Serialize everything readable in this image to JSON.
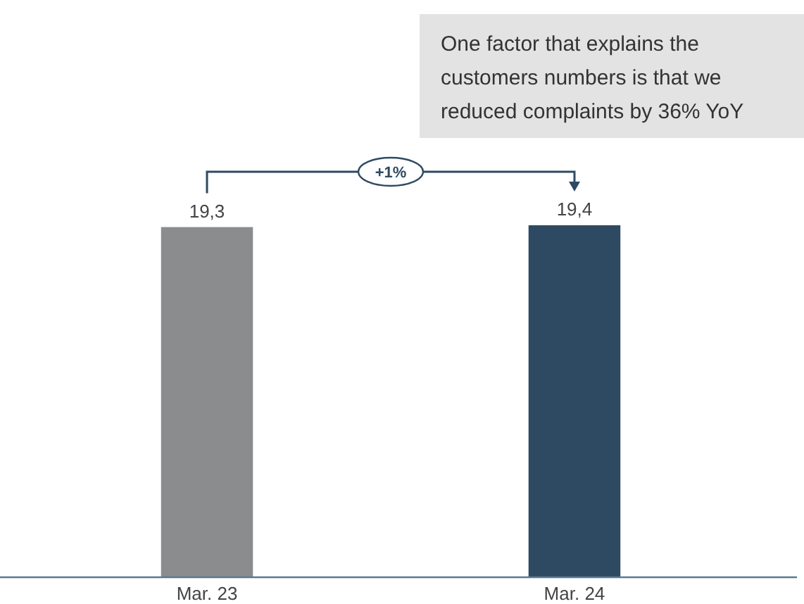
{
  "chart_data": {
    "type": "bar",
    "categories": [
      "Mar. 23",
      "Mar. 24"
    ],
    "values": [
      19.3,
      19.4
    ],
    "colors": [
      "#8a8c8e",
      "#2e4a63"
    ],
    "value_labels": [
      "19,3",
      "19,4"
    ],
    "annotations": [
      "One factor that explains the customers numbers is that we reduced complaints by 36% YoY",
      "+1%"
    ]
  }
}
